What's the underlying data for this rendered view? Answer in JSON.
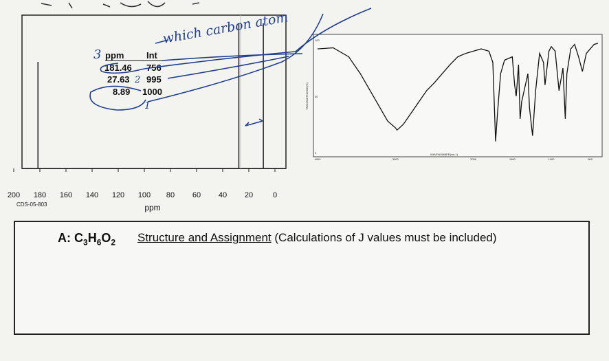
{
  "nmr_table": {
    "header_ppm": "ppm",
    "header_int": "Int",
    "rows": [
      {
        "ppm": "181.46",
        "int": "756"
      },
      {
        "ppm": "27.63",
        "int": "995"
      },
      {
        "ppm": "8.89",
        "int": "1000"
      }
    ]
  },
  "sample_code": "CDS-05-803",
  "handwriting": {
    "question": "which carbon atom",
    "digit_3": "3",
    "digit_2": "2",
    "digit_1": "1"
  },
  "ir_chart": {
    "y_ticks": [
      "100",
      "50",
      "0"
    ],
    "x_ticks": [
      "4000",
      "3000",
      "2000",
      "1500",
      "1000",
      "500"
    ],
    "x_label": "WAVENUMBER(cm-1)",
    "y_label": "TRANSMITTANCE(%)"
  },
  "answer": {
    "label_prefix": "A: C",
    "sub1": "3",
    "mid1": "H",
    "sub2": "6",
    "mid2": "O",
    "sub3": "2",
    "instructions_underlined": "Structure and Assignment",
    "instructions_rest": " (Calculations of J values must be included)"
  },
  "colors": {
    "ink": "#1f3f8f",
    "line": "#222222",
    "paper": "#f3f3f0"
  },
  "chart_data": [
    {
      "type": "bar",
      "title": "",
      "xlabel": "ppm",
      "ylabel": "",
      "x_ticks": [
        "200",
        "180",
        "160",
        "140",
        "120",
        "100",
        "80",
        "60",
        "40",
        "20",
        "0"
      ],
      "xlim": [
        200,
        0
      ],
      "ylim": [
        0,
        1000
      ],
      "peaks": [
        {
          "ppm": 181.46,
          "intensity": 756
        },
        {
          "ppm": 27.63,
          "intensity": 995
        },
        {
          "ppm": 8.89,
          "intensity": 1000
        }
      ],
      "grid": false
    },
    {
      "type": "line",
      "title": "",
      "xlabel": "WAVENUMBER(cm-1)",
      "ylabel": "TRANSMITTANCE(%)",
      "xlim": [
        4000,
        400
      ],
      "ylim": [
        0,
        100
      ],
      "series": [
        {
          "x": [
            4000,
            3800,
            3600,
            3450,
            3300,
            3200,
            3100,
            3000,
            2980,
            2900,
            2800,
            2700,
            2600,
            2500,
            2400,
            2300,
            2200,
            2100,
            2000,
            1900,
            1800,
            1750,
            1715,
            1690,
            1650,
            1600,
            1500,
            1470,
            1450,
            1420,
            1400,
            1380,
            1300,
            1280,
            1240,
            1200,
            1150,
            1100,
            1080,
            1030,
            1000,
            950,
            900,
            850,
            820,
            800,
            750,
            700,
            650,
            600,
            550,
            500,
            450,
            400
          ],
          "y": [
            92,
            93,
            85,
            70,
            52,
            40,
            28,
            22,
            20,
            25,
            35,
            45,
            55,
            62,
            70,
            78,
            85,
            88,
            90,
            92,
            90,
            80,
            10,
            35,
            70,
            82,
            85,
            60,
            50,
            78,
            30,
            45,
            70,
            40,
            15,
            55,
            88,
            80,
            60,
            90,
            94,
            90,
            55,
            75,
            30,
            70,
            92,
            96,
            85,
            72,
            88,
            92,
            96,
            97
          ]
        }
      ],
      "grid": false
    }
  ]
}
